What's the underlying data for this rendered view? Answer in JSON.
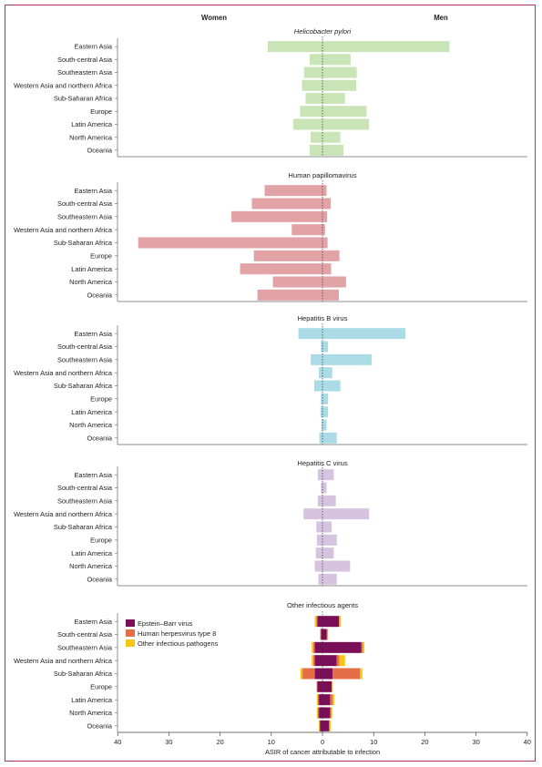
{
  "chart_data": {
    "type": "bar",
    "orientation": "horizontal",
    "layout": "back-to-back",
    "headers": {
      "left": "Women",
      "right": "Men"
    },
    "xlabel": "ASIR of cancer attributable to infection",
    "xticks": [
      "40",
      "30",
      "20",
      "10",
      "0",
      "10",
      "20",
      "30",
      "40"
    ],
    "xlim": [
      -40,
      40
    ],
    "categories": [
      "Eastern Asia",
      "South-central Asia",
      "Southeastern Asia",
      "Western Asia and northern Africa",
      "Sub-Saharan Africa",
      "Europe",
      "Latin America",
      "North America",
      "Oceania"
    ],
    "panels": [
      {
        "title": "Helicobacter pylori",
        "italic": true,
        "color": "#c9e4b6",
        "women": [
          10.7,
          2.5,
          3.6,
          4.0,
          3.3,
          4.4,
          5.7,
          2.3,
          2.5
        ],
        "men": [
          24.8,
          5.5,
          6.7,
          6.6,
          4.4,
          8.6,
          9.1,
          3.5,
          4.1
        ]
      },
      {
        "title": "Human papillomavirus",
        "italic": false,
        "color": "#e2a3a6",
        "women": [
          11.3,
          13.8,
          17.8,
          6.0,
          36.0,
          13.4,
          16.1,
          9.7,
          12.7
        ],
        "men": [
          0.8,
          1.6,
          0.9,
          0.5,
          1.0,
          3.3,
          1.7,
          4.6,
          3.2
        ]
      },
      {
        "title": "Hepatitis B virus",
        "italic": false,
        "color": "#aadbe6",
        "women": [
          4.7,
          0.3,
          2.3,
          0.7,
          1.6,
          0.3,
          0.4,
          0.2,
          0.6
        ],
        "men": [
          16.2,
          1.1,
          9.6,
          1.9,
          3.5,
          1.1,
          1.1,
          0.8,
          2.8
        ]
      },
      {
        "title": "Hepatitis C virus",
        "italic": false,
        "color": "#d5c3e0",
        "women": [
          0.9,
          0.3,
          0.9,
          3.7,
          1.2,
          1.1,
          1.3,
          1.5,
          0.8
        ],
        "men": [
          2.2,
          0.8,
          2.6,
          9.1,
          1.8,
          2.8,
          2.2,
          5.4,
          2.8
        ]
      },
      {
        "title": "Other infectious agents",
        "italic": false,
        "stacked": true,
        "series": [
          {
            "name": "Epstein–Barr virus",
            "color": "#7a0e59",
            "women": [
              1.0,
              0.3,
              1.5,
              1.5,
              1.5,
              1.0,
              0.7,
              0.7,
              0.5
            ],
            "men": [
              3.2,
              0.8,
              7.6,
              2.8,
              2.0,
              1.8,
              1.5,
              1.5,
              1.3
            ]
          },
          {
            "name": "Human herpesvirus type 8",
            "color": "#e46f47",
            "women": [
              0.2,
              0.1,
              0.3,
              0.3,
              2.4,
              0.1,
              0.2,
              0.2,
              0.1
            ],
            "men": [
              0.1,
              0.2,
              0.3,
              0.5,
              5.3,
              0.1,
              0.5,
              0.2,
              0.1
            ]
          },
          {
            "name": "Other infectious pathogens",
            "color": "#f5c518",
            "women": [
              0.3,
              0.1,
              0.3,
              0.3,
              0.4,
              0.1,
              0.2,
              0.2,
              0.1
            ],
            "men": [
              0.3,
              0.1,
              0.3,
              1.1,
              0.5,
              0.1,
              0.3,
              0.2,
              0.2
            ]
          }
        ]
      }
    ]
  }
}
